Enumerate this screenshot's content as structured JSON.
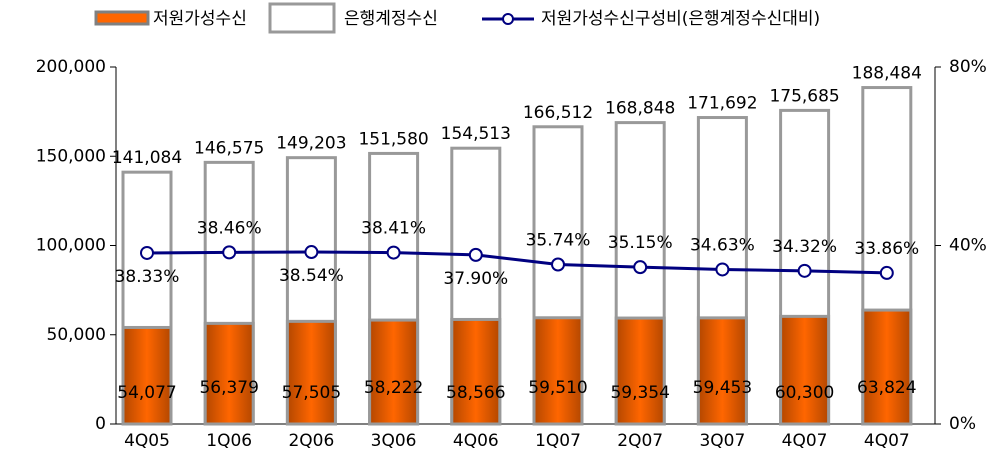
{
  "chart_data": {
    "type": "bar_line",
    "categories": [
      "4Q05",
      "1Q06",
      "2Q06",
      "3Q06",
      "4Q06",
      "1Q07",
      "2Q07",
      "3Q07",
      "4Q07",
      "4Q07"
    ],
    "series": [
      {
        "name": "저원가성수신",
        "color": "#ff6600",
        "kind": "bar",
        "values": [
          54077,
          56379,
          57505,
          58222,
          58566,
          59510,
          59354,
          59453,
          60300,
          63824
        ],
        "value_labels": [
          "54,077",
          "56,379",
          "57,505",
          "58,222",
          "58,566",
          "59,510",
          "59,354",
          "59,453",
          "60,300",
          "63,824"
        ]
      },
      {
        "name": "은행계정수신",
        "color": "#ffffff",
        "kind": "bar",
        "values": [
          141084,
          146575,
          149203,
          151580,
          154513,
          166512,
          168848,
          171692,
          175685,
          188484
        ],
        "value_labels": [
          "141,084",
          "146,575",
          "149,203",
          "151,580",
          "154,513",
          "166,512",
          "168,848",
          "171,692",
          "175,685",
          "188,484"
        ]
      },
      {
        "name": "저원가성수신구성비(은행계정수신대비)",
        "color": "#000080",
        "kind": "line",
        "axis": "y2",
        "values": [
          38.33,
          38.46,
          38.54,
          38.41,
          37.9,
          35.74,
          35.15,
          34.63,
          34.32,
          33.86
        ],
        "value_labels": [
          "38.33%",
          "38.46%",
          "38.54%",
          "38.41%",
          "37.90%",
          "35.74%",
          "35.15%",
          "34.63%",
          "34.32%",
          "33.86%"
        ]
      }
    ],
    "ylim": [
      0,
      200000
    ],
    "yticks": [
      0,
      {
        "value": 50000,
        "label": "50,000"
      },
      {
        "value": 100000,
        "label": "100,000"
      },
      {
        "value": 150000,
        "label": "150,000"
      },
      {
        "value": 200000,
        "label": "200,000"
      }
    ],
    "y2lim": [
      0,
      80
    ],
    "y2ticks": [
      {
        "value": 0,
        "label": "0%"
      },
      {
        "value": 40,
        "label": "40%"
      },
      {
        "value": 80,
        "label": "80%"
      }
    ]
  }
}
